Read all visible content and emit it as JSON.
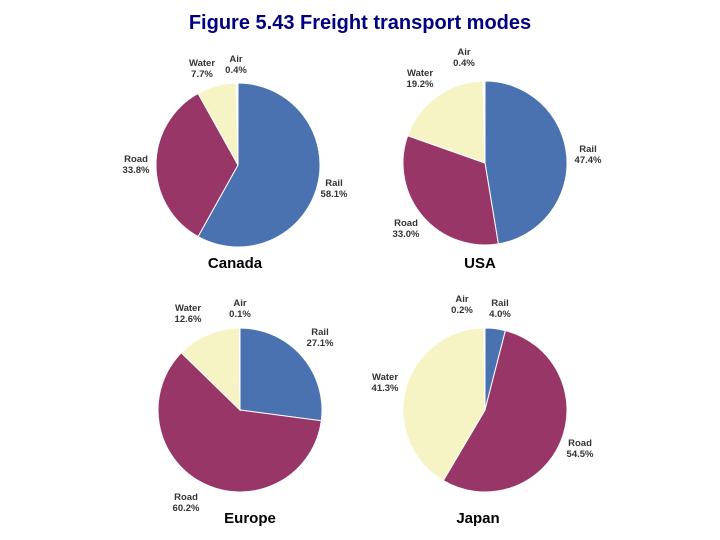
{
  "title": "Figure 5.43 Freight transport modes",
  "colors": {
    "Rail": "#4a72b0",
    "Road": "#983668",
    "Water": "#f6f4c4",
    "Air": "#ffffff"
  },
  "chart_data": [
    {
      "type": "pie",
      "title": "Canada",
      "slices": [
        {
          "label": "Rail",
          "value": 58.1,
          "text": "58.1%"
        },
        {
          "label": "Road",
          "value": 33.8,
          "text": "33.8%"
        },
        {
          "label": "Water",
          "value": 7.7,
          "text": "7.7%"
        },
        {
          "label": "Air",
          "value": 0.4,
          "text": "0.4%"
        }
      ]
    },
    {
      "type": "pie",
      "title": "USA",
      "slices": [
        {
          "label": "Rail",
          "value": 47.4,
          "text": "47.4%"
        },
        {
          "label": "Road",
          "value": 33.0,
          "text": "33.0%"
        },
        {
          "label": "Water",
          "value": 19.2,
          "text": "19.2%"
        },
        {
          "label": "Air",
          "value": 0.4,
          "text": "0.4%"
        }
      ]
    },
    {
      "type": "pie",
      "title": "Europe",
      "slices": [
        {
          "label": "Rail",
          "value": 27.1,
          "text": "27.1%"
        },
        {
          "label": "Road",
          "value": 60.2,
          "text": "60.2%"
        },
        {
          "label": "Water",
          "value": 12.6,
          "text": "12.6%"
        },
        {
          "label": "Air",
          "value": 0.1,
          "text": "0.1%"
        }
      ]
    },
    {
      "type": "pie",
      "title": "Japan",
      "slices": [
        {
          "label": "Rail",
          "value": 4.0,
          "text": "4.0%"
        },
        {
          "label": "Road",
          "value": 54.5,
          "text": "54.5%"
        },
        {
          "label": "Water",
          "value": 41.3,
          "text": "41.3%"
        },
        {
          "label": "Air",
          "value": 0.2,
          "text": "0.2%"
        }
      ]
    }
  ]
}
